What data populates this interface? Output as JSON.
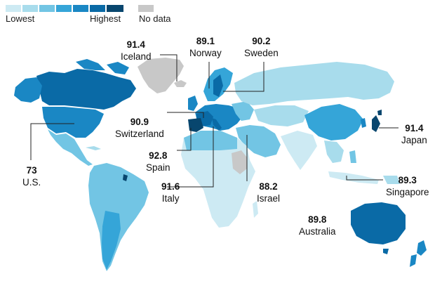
{
  "legend": {
    "lowest_label": "Lowest",
    "highest_label": "Highest",
    "nodata_label": "No data",
    "scale_colors": [
      "#cdeaf3",
      "#a8dcec",
      "#72c5e4",
      "#35a5d8",
      "#1a87c4",
      "#0a6aa6",
      "#08466e"
    ],
    "nodata_color": "#c8c8c8"
  },
  "ocean_color": "#ffffff",
  "callouts": [
    {
      "id": "iceland",
      "value": "91.4",
      "name": "Iceland",
      "color": "#c8c8c8"
    },
    {
      "id": "norway",
      "value": "89.1",
      "name": "Norway",
      "color": "#35a5d8"
    },
    {
      "id": "sweden",
      "value": "90.2",
      "name": "Sweden",
      "color": "#1a87c4"
    },
    {
      "id": "switzerland",
      "value": "90.9",
      "name": "Switzerland",
      "color": "#0a6aa6"
    },
    {
      "id": "japan",
      "value": "91.4",
      "name": "Japan",
      "color": "#08466e"
    },
    {
      "id": "us",
      "value": "73",
      "name": "U.S.",
      "color": "#1a87c4"
    },
    {
      "id": "spain",
      "value": "92.8",
      "name": "Spain",
      "color": "#08466e"
    },
    {
      "id": "italy",
      "value": "91.6",
      "name": "Italy",
      "color": "#0a6aa6"
    },
    {
      "id": "israel",
      "value": "88.2",
      "name": "Israel",
      "color": "#35a5d8"
    },
    {
      "id": "singapore",
      "value": "89.3",
      "name": "Singapore",
      "color": "#1a87c4"
    },
    {
      "id": "australia",
      "value": "89.8",
      "name": "Australia",
      "color": "#1a87c4"
    }
  ]
}
